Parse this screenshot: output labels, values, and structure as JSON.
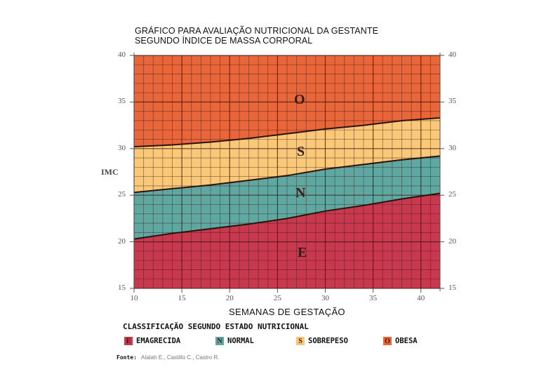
{
  "title": {
    "line1": "GRÁFICO PARA AVALIAÇÃO NUTRICIONAL DA GESTANTE",
    "line2": "SEGUNDO ÍNDICE DE MASSA CORPORAL"
  },
  "axes": {
    "ylabel": "IMC",
    "xlabel": "SEMANAS DE GESTAÇÃO",
    "yticks": [
      "40",
      "35",
      "30",
      "25",
      "20",
      "15"
    ],
    "xticks": [
      "10",
      "15",
      "20",
      "25",
      "30",
      "35",
      "40"
    ]
  },
  "bands": {
    "O": "O",
    "S": "S",
    "N": "N",
    "E": "E"
  },
  "legend": {
    "title": "CLASSIFICAÇÃO SEGUNDO ESTADO NUTRICIONAL",
    "items": [
      {
        "letter": "E",
        "label": "EMAGRECIDA",
        "color": "#c8394f"
      },
      {
        "letter": "N",
        "label": "NORMAL",
        "color": "#5fa8a2"
      },
      {
        "letter": "S",
        "label": "SOBREPESO",
        "color": "#f9c878"
      },
      {
        "letter": "O",
        "label": "OBESA",
        "color": "#e8663a"
      }
    ]
  },
  "source": {
    "label": "Fonte:",
    "text": "Atalah E., Castillo C., Castro R."
  },
  "chart_data": {
    "type": "area",
    "title": "GRÁFICO PARA AVALIAÇÃO NUTRICIONAL DA GESTANTE SEGUNDO ÍNDICE DE MASSA CORPORAL",
    "xlabel": "SEMANAS DE GESTAÇÃO",
    "ylabel": "IMC",
    "xlim": [
      10,
      42
    ],
    "ylim": [
      15,
      40
    ],
    "grid": true,
    "x": [
      10,
      14,
      18,
      22,
      26,
      30,
      34,
      38,
      42
    ],
    "series": [
      {
        "name": "Limite Emagrecida/Normal",
        "values": [
          20.3,
          20.9,
          21.4,
          21.9,
          22.5,
          23.3,
          23.9,
          24.6,
          25.2
        ]
      },
      {
        "name": "Limite Normal/Sobrepeso",
        "values": [
          25.3,
          25.7,
          26.1,
          26.6,
          27.1,
          27.8,
          28.3,
          28.8,
          29.2
        ]
      },
      {
        "name": "Limite Sobrepeso/Obesa",
        "values": [
          30.2,
          30.4,
          30.7,
          31.1,
          31.6,
          32.1,
          32.5,
          33.0,
          33.3
        ]
      }
    ],
    "regions": [
      {
        "letter": "E",
        "name": "EMAGRECIDA",
        "color": "#c8394f"
      },
      {
        "letter": "N",
        "name": "NORMAL",
        "color": "#5fa8a2"
      },
      {
        "letter": "S",
        "name": "SOBREPESO",
        "color": "#f9c878"
      },
      {
        "letter": "O",
        "name": "OBESA",
        "color": "#e8663a"
      }
    ],
    "legend_position": "bottom"
  }
}
